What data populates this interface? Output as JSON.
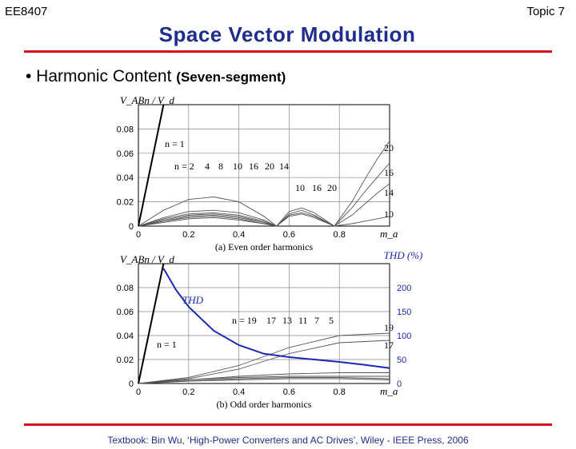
{
  "header": {
    "course": "EE8407",
    "topic": "Topic 7"
  },
  "title": "Space Vector Modulation",
  "bullet": {
    "main": "• Harmonic Content",
    "sub": "(Seven-segment)"
  },
  "footer": "Textbook: Bin Wu, ‘High-Power Converters and AC Drives’, Wiley - IEEE Press, 2006",
  "colors": {
    "title": "#1f2d8c",
    "rule": "#d7141a",
    "thd": "#1c28b0"
  },
  "chart_data": [
    {
      "type": "line",
      "caption": "(a) Even order harmonics",
      "ylabel": "V_ABn / V_d",
      "xlabel": "m_a",
      "xlim": [
        0,
        1.0
      ],
      "ylim": [
        0,
        0.1
      ],
      "xticks": [
        "0",
        "0.2",
        "0.4",
        "0.6",
        "0.8"
      ],
      "yticks": [
        "0",
        "0.02",
        "0.04",
        "0.06",
        "0.08"
      ],
      "annotations": [
        "n = 1",
        "n = 2",
        "4",
        "8",
        "10",
        "16",
        "20",
        "14",
        "10",
        "16",
        "20",
        "20",
        "16",
        "14",
        "10"
      ],
      "fundamental": {
        "name": "n = 1",
        "x": [
          0,
          0.1
        ],
        "y": [
          0,
          0.1
        ]
      },
      "series": [
        {
          "name": "2",
          "x": [
            0,
            0.1,
            0.2,
            0.3,
            0.4,
            0.5,
            0.55
          ],
          "y": [
            0,
            0.013,
            0.022,
            0.024,
            0.02,
            0.008,
            0
          ]
        },
        {
          "name": "4",
          "x": [
            0,
            0.1,
            0.2,
            0.3,
            0.4,
            0.5,
            0.55
          ],
          "y": [
            0,
            0.007,
            0.012,
            0.013,
            0.011,
            0.005,
            0
          ]
        },
        {
          "name": "8",
          "x": [
            0,
            0.1,
            0.2,
            0.3,
            0.4,
            0.5,
            0.55
          ],
          "y": [
            0,
            0.006,
            0.01,
            0.011,
            0.009,
            0.004,
            0
          ]
        },
        {
          "name": "10",
          "x": [
            0,
            0.1,
            0.2,
            0.3,
            0.4,
            0.5,
            0.55,
            0.6,
            0.65,
            0.7,
            0.78,
            0.85,
            0.9,
            0.95,
            1.0
          ],
          "y": [
            0,
            0.005,
            0.009,
            0.01,
            0.008,
            0.003,
            0,
            0.009,
            0.011,
            0.008,
            0,
            0.002,
            0.004,
            0.006,
            0.008
          ]
        },
        {
          "name": "14",
          "x": [
            0,
            0.1,
            0.2,
            0.3,
            0.4,
            0.5,
            0.55,
            0.6,
            0.65,
            0.7,
            0.78,
            0.85,
            0.9,
            0.95,
            1.0
          ],
          "y": [
            0,
            0.004,
            0.008,
            0.009,
            0.007,
            0.003,
            0,
            0.008,
            0.01,
            0.007,
            0,
            0.009,
            0.018,
            0.027,
            0.035
          ]
        },
        {
          "name": "16",
          "x": [
            0,
            0.1,
            0.2,
            0.3,
            0.4,
            0.5,
            0.55,
            0.6,
            0.65,
            0.7,
            0.78,
            0.85,
            0.9,
            0.95,
            1.0
          ],
          "y": [
            0,
            0.004,
            0.007,
            0.008,
            0.006,
            0.002,
            0,
            0.012,
            0.015,
            0.011,
            0,
            0.015,
            0.028,
            0.04,
            0.052
          ]
        },
        {
          "name": "20",
          "x": [
            0,
            0.1,
            0.2,
            0.3,
            0.4,
            0.5,
            0.55,
            0.6,
            0.65,
            0.7,
            0.78,
            0.85,
            0.9,
            0.95,
            1.0
          ],
          "y": [
            0,
            0.003,
            0.006,
            0.007,
            0.005,
            0.002,
            0,
            0.01,
            0.013,
            0.009,
            0,
            0.02,
            0.038,
            0.055,
            0.07
          ]
        }
      ]
    },
    {
      "type": "line",
      "caption": "(b) Odd order harmonics",
      "ylabel": "V_ABn / V_d",
      "xlabel": "m_a",
      "y2label": "THD (%)",
      "xlim": [
        0,
        1.0
      ],
      "ylim": [
        0,
        0.1
      ],
      "y2lim": [
        0,
        250
      ],
      "xticks": [
        "0",
        "0.2",
        "0.4",
        "0.6",
        "0.8"
      ],
      "yticks": [
        "0",
        "0.02",
        "0.04",
        "0.06",
        "0.08"
      ],
      "y2ticks": [
        "0",
        "50",
        "100",
        "150",
        "200"
      ],
      "annotations": [
        "THD",
        "n = 19",
        "17",
        "13",
        "11",
        "7",
        "5",
        "19",
        "17",
        "n = 1"
      ],
      "fundamental": {
        "name": "n = 1",
        "x": [
          0,
          0.1
        ],
        "y": [
          0,
          0.1
        ]
      },
      "thd": {
        "name": "THD",
        "x": [
          0.1,
          0.15,
          0.2,
          0.3,
          0.4,
          0.5,
          0.6,
          0.7,
          0.8,
          0.9,
          1.0
        ],
        "y": [
          240,
          195,
          160,
          110,
          80,
          62,
          55,
          50,
          45,
          39,
          32
        ]
      },
      "series": [
        {
          "name": "19",
          "x": [
            0,
            0.2,
            0.4,
            0.6,
            0.8,
            1.0
          ],
          "y": [
            0,
            0.005,
            0.015,
            0.03,
            0.04,
            0.042
          ]
        },
        {
          "name": "17",
          "x": [
            0,
            0.2,
            0.4,
            0.6,
            0.8,
            1.0
          ],
          "y": [
            0,
            0.004,
            0.012,
            0.025,
            0.034,
            0.036
          ]
        },
        {
          "name": "13",
          "x": [
            0,
            0.2,
            0.4,
            0.6,
            0.8,
            1.0
          ],
          "y": [
            0,
            0.003,
            0.006,
            0.008,
            0.009,
            0.009
          ]
        },
        {
          "name": "11",
          "x": [
            0,
            0.2,
            0.4,
            0.6,
            0.8,
            1.0
          ],
          "y": [
            0,
            0.003,
            0.005,
            0.006,
            0.006,
            0.006
          ]
        },
        {
          "name": "7",
          "x": [
            0,
            0.2,
            0.4,
            0.6,
            0.8,
            1.0
          ],
          "y": [
            0,
            0.002,
            0.004,
            0.005,
            0.005,
            0.004
          ]
        },
        {
          "name": "5",
          "x": [
            0,
            0.2,
            0.4,
            0.6,
            0.8,
            1.0
          ],
          "y": [
            0,
            0.002,
            0.003,
            0.004,
            0.004,
            0.003
          ]
        }
      ]
    }
  ]
}
